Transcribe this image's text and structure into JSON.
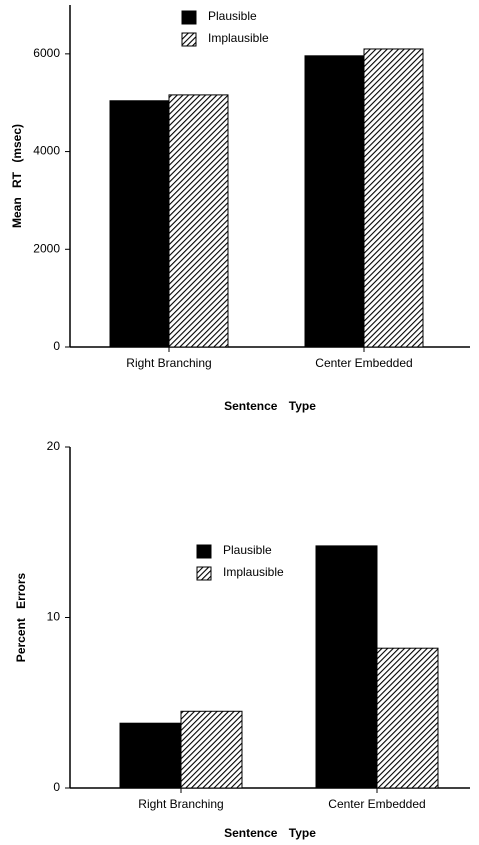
{
  "chart_data": [
    {
      "type": "bar",
      "ylabel": "Mean RT (msec)",
      "xlabel": "Sentence Type",
      "categories": [
        "Right Branching",
        "Center Embedded"
      ],
      "series": [
        {
          "name": "Plausible",
          "color": "#000000",
          "hatch": false,
          "values": [
            5040,
            5960
          ]
        },
        {
          "name": "Implausible",
          "color": "#000000",
          "hatch": true,
          "values": [
            5160,
            6100
          ]
        }
      ],
      "ylim": [
        0,
        7000
      ],
      "yticks": [
        0,
        2000,
        4000,
        6000
      ]
    },
    {
      "type": "bar",
      "ylabel": "Percent Errors",
      "xlabel": "Sentence Type",
      "categories": [
        "Right Branching",
        "Center Embedded"
      ],
      "series": [
        {
          "name": "Plausible",
          "color": "#000000",
          "hatch": false,
          "values": [
            3.8,
            14.2
          ]
        },
        {
          "name": "Implausible",
          "color": "#000000",
          "hatch": true,
          "values": [
            4.5,
            8.2
          ]
        }
      ],
      "ylim": [
        0,
        20
      ],
      "yticks": [
        0,
        10,
        20
      ]
    }
  ]
}
